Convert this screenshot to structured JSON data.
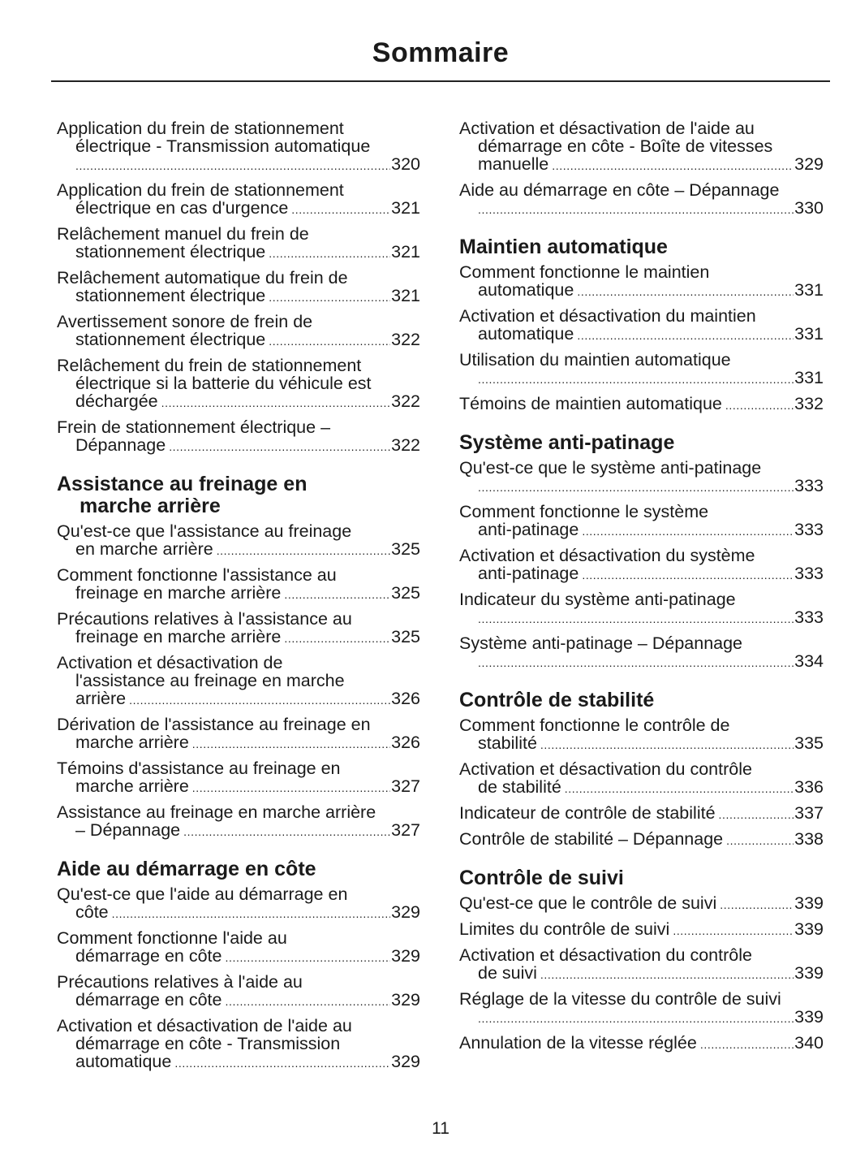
{
  "title": "Sommaire",
  "page_number": "11",
  "columns": [
    {
      "items": [
        {
          "type": "entry",
          "lines": [
            "Application du frein de stationnement",
            "électrique - Transmission automatique",
            ""
          ],
          "page": "320"
        },
        {
          "type": "entry",
          "lines": [
            "Application du frein de stationnement",
            "électrique en cas d'urgence"
          ],
          "page": "321"
        },
        {
          "type": "entry",
          "lines": [
            "Relâchement manuel du frein de",
            "stationnement électrique"
          ],
          "page": "321"
        },
        {
          "type": "entry",
          "lines": [
            "Relâchement automatique du frein de",
            "stationnement électrique"
          ],
          "page": "321"
        },
        {
          "type": "entry",
          "lines": [
            "Avertissement sonore de frein de",
            "stationnement électrique"
          ],
          "page": "322"
        },
        {
          "type": "entry",
          "lines": [
            "Relâchement du frein de stationnement",
            "électrique si la batterie du véhicule est",
            "déchargée"
          ],
          "page": "322"
        },
        {
          "type": "entry",
          "lines": [
            "Frein de stationnement électrique –",
            "Dépannage"
          ],
          "page": "322"
        },
        {
          "type": "heading",
          "lines": [
            "Assistance au freinage en",
            "marche arrière"
          ]
        },
        {
          "type": "entry",
          "lines": [
            "Qu'est-ce que l'assistance au freinage",
            "en marche arrière"
          ],
          "page": "325"
        },
        {
          "type": "entry",
          "lines": [
            "Comment fonctionne l'assistance au",
            "freinage en marche arrière"
          ],
          "page": "325"
        },
        {
          "type": "entry",
          "lines": [
            "Précautions relatives à l'assistance au",
            "freinage en marche arrière"
          ],
          "page": "325"
        },
        {
          "type": "entry",
          "lines": [
            "Activation et désactivation de",
            "l'assistance au freinage en marche",
            "arrière"
          ],
          "page": "326"
        },
        {
          "type": "entry",
          "lines": [
            "Dérivation de l'assistance au freinage en",
            "marche arrière"
          ],
          "page": "326"
        },
        {
          "type": "entry",
          "lines": [
            "Témoins d'assistance au freinage en",
            "marche arrière"
          ],
          "page": "327"
        },
        {
          "type": "entry",
          "lines": [
            "Assistance au freinage en marche arrière",
            "– Dépannage"
          ],
          "page": "327"
        },
        {
          "type": "heading",
          "lines": [
            "Aide au démarrage en côte"
          ]
        },
        {
          "type": "entry",
          "lines": [
            "Qu'est-ce que l'aide au démarrage en",
            "côte"
          ],
          "page": "329"
        },
        {
          "type": "entry",
          "lines": [
            "Comment fonctionne l'aide au",
            "démarrage en côte"
          ],
          "page": "329"
        },
        {
          "type": "entry",
          "lines": [
            "Précautions relatives à l'aide au",
            "démarrage en côte"
          ],
          "page": "329"
        },
        {
          "type": "entry",
          "lines": [
            "Activation et désactivation de l'aide au",
            "démarrage en côte - Transmission",
            "automatique"
          ],
          "page": "329"
        }
      ]
    },
    {
      "items": [
        {
          "type": "entry",
          "lines": [
            "Activation et désactivation de l'aide au",
            "démarrage en côte - Boîte de vitesses",
            "manuelle"
          ],
          "page": "329"
        },
        {
          "type": "entry",
          "lines": [
            "Aide au démarrage en côte – Dépannage",
            ""
          ],
          "page": "330"
        },
        {
          "type": "heading",
          "lines": [
            "Maintien automatique"
          ]
        },
        {
          "type": "entry",
          "lines": [
            "Comment fonctionne le maintien",
            "automatique"
          ],
          "page": "331"
        },
        {
          "type": "entry",
          "lines": [
            "Activation et désactivation du maintien",
            "automatique"
          ],
          "page": "331"
        },
        {
          "type": "entry",
          "lines": [
            "Utilisation du maintien automatique",
            ""
          ],
          "page": "331"
        },
        {
          "type": "entry",
          "lines": [
            "Témoins de maintien automatique"
          ],
          "page": "332"
        },
        {
          "type": "heading",
          "lines": [
            "Système anti-patinage"
          ]
        },
        {
          "type": "entry",
          "lines": [
            "Qu'est-ce que le système anti-patinage",
            ""
          ],
          "page": "333"
        },
        {
          "type": "entry",
          "lines": [
            "Comment fonctionne le système",
            "anti-patinage"
          ],
          "page": "333"
        },
        {
          "type": "entry",
          "lines": [
            "Activation et désactivation du système",
            "anti-patinage"
          ],
          "page": "333"
        },
        {
          "type": "entry",
          "lines": [
            "Indicateur du système anti-patinage",
            ""
          ],
          "page": "333"
        },
        {
          "type": "entry",
          "lines": [
            "Système anti-patinage – Dépannage",
            ""
          ],
          "page": "334"
        },
        {
          "type": "heading",
          "lines": [
            "Contrôle de stabilité"
          ]
        },
        {
          "type": "entry",
          "lines": [
            "Comment fonctionne le contrôle de",
            "stabilité"
          ],
          "page": "335"
        },
        {
          "type": "entry",
          "lines": [
            "Activation et désactivation du contrôle",
            "de stabilité"
          ],
          "page": "336"
        },
        {
          "type": "entry",
          "lines": [
            "Indicateur de contrôle de stabilité"
          ],
          "page": "337"
        },
        {
          "type": "entry",
          "lines": [
            "Contrôle de stabilité – Dépannage"
          ],
          "page": "338"
        },
        {
          "type": "heading",
          "lines": [
            "Contrôle de suivi"
          ]
        },
        {
          "type": "entry",
          "lines": [
            "Qu'est-ce que le contrôle de suivi"
          ],
          "page": "339"
        },
        {
          "type": "entry",
          "lines": [
            "Limites du contrôle de suivi"
          ],
          "page": "339"
        },
        {
          "type": "entry",
          "lines": [
            "Activation et désactivation du contrôle",
            "de suivi"
          ],
          "page": "339"
        },
        {
          "type": "entry",
          "lines": [
            "Réglage de la vitesse du contrôle de suivi",
            ""
          ],
          "page": "339"
        },
        {
          "type": "entry",
          "lines": [
            "Annulation de la vitesse réglée"
          ],
          "page": "340"
        }
      ]
    }
  ]
}
